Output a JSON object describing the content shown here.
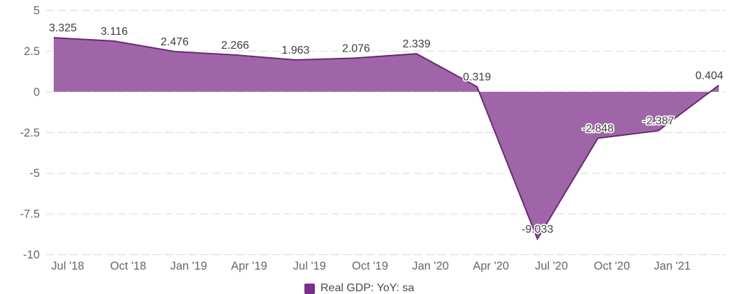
{
  "chart_data": {
    "type": "area",
    "title": "",
    "series": [
      {
        "name": "Real GDP: YoY: sa",
        "color": "#7b2d8b",
        "line_color": "#662b70",
        "fill_color": "#a065a8",
        "values": [
          3.325,
          3.116,
          2.476,
          2.266,
          1.963,
          2.076,
          2.339,
          0.319,
          -9.033,
          -2.848,
          -2.387,
          0.404
        ]
      }
    ],
    "data_labels": [
      "3.325",
      "3.116",
      "2.476",
      "2.266",
      "1.963",
      "2.076",
      "2.339",
      "0.319",
      "-9.033",
      "-2.848",
      "-2.387",
      "0.404"
    ],
    "x_tick_labels": [
      "Jul '18",
      "Oct '18",
      "Jan '19",
      "Apr '19",
      "Jul '19",
      "Oct '19",
      "Jan '20",
      "Apr '20",
      "Jul '20",
      "Oct '20",
      "Jan '21"
    ],
    "y_ticks": [
      5,
      2.5,
      0,
      -2.5,
      -5,
      -7.5,
      -10
    ],
    "y_tick_labels": [
      "5",
      "2.5",
      "0",
      "-2.5",
      "-5",
      "-7.5",
      "-10"
    ],
    "ylim": [
      -10,
      5
    ],
    "grid": "horizontal-dashed",
    "grid_color": "#dedede",
    "axis_text_color": "#676767",
    "data_label_color": "#3c3c3c",
    "data_label_halo": "#ffffff",
    "legend_position": "bottom-center",
    "background": "#ffffff"
  }
}
